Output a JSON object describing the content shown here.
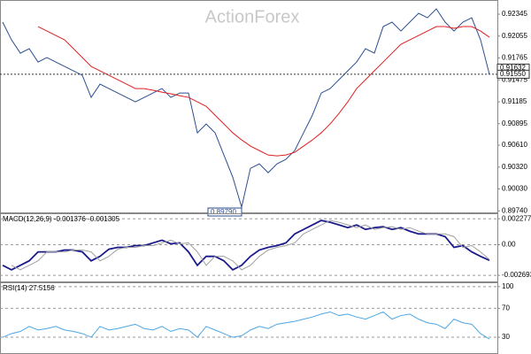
{
  "watermark": "ActionForex",
  "chart_data": [
    {
      "type": "line",
      "series": [
        {
          "color": "#2d4f8f",
          "values": [
            0.9224,
            0.92005,
            0.91829,
            0.91888,
            0.91712,
            0.91771,
            0.91712,
            0.91653,
            0.91595,
            0.91536,
            0.91243,
            0.91419,
            0.9136,
            0.91301,
            0.91243,
            0.91184,
            0.91243,
            0.91301,
            0.9136,
            0.91243,
            0.91301,
            0.91301,
            0.90774,
            0.90891,
            0.90774,
            0.9048,
            0.90187,
            0.8979,
            0.90304,
            0.90363,
            0.90246,
            0.90363,
            0.90422,
            0.90539,
            0.90774,
            0.91008,
            0.91301,
            0.9136,
            0.91477,
            0.91595,
            0.91712,
            0.91888,
            0.91829,
            0.92181,
            0.9224,
            0.92122,
            0.9224,
            0.92357,
            0.92298,
            0.92416,
            0.9224,
            0.92122,
            0.9224,
            0.92298,
            0.92005,
            0.9155
          ]
        },
        {
          "color": "#e02020",
          "values": [
            null,
            null,
            null,
            null,
            0.92181,
            0.92122,
            0.92064,
            0.92005,
            0.91888,
            0.91771,
            0.91653,
            0.91595,
            0.91536,
            0.91477,
            0.91419,
            0.9136,
            0.9136,
            0.91337,
            0.91313,
            0.9129,
            0.91266,
            0.91243,
            0.91184,
            0.91125,
            0.91008,
            0.90891,
            0.90774,
            0.9068,
            0.90598,
            0.90539,
            0.9048,
            0.90469,
            0.9048,
            0.90515,
            0.90598,
            0.9068,
            0.90774,
            0.90891,
            0.91031,
            0.91184,
            0.9136,
            0.91477,
            0.91595,
            0.91712,
            0.91829,
            0.91947,
            0.92005,
            0.92064,
            0.92122,
            0.92181,
            0.92181,
            0.92158,
            0.92181,
            0.92181,
            0.92122,
            0.9204
          ]
        }
      ],
      "ylim": [
        0.8972,
        0.92533
      ],
      "yticks": [
        0.92345,
        0.92055,
        0.91765,
        0.91475,
        0.91185,
        0.90895,
        {
          "value": 0.9061,
          "label": "0.90610"
        },
        {
          "value": 0.9032,
          "label": "0.90320"
        },
        {
          "value": 0.9003,
          "label": "0.90030"
        },
        {
          "value": 0.8974,
          "label": "0.89740"
        }
      ],
      "price_labels": [
        {
          "value": 0.91632,
          "label": "0.91632"
        },
        {
          "value": 0.9155,
          "label": "0.91550"
        }
      ],
      "low_label": {
        "value": 0.8979,
        "label": "0.89790"
      }
    },
    {
      "type": "line",
      "title": "MACD(12,26,9) -0.001376 -0.001305",
      "series": [
        {
          "color": "#1a1a8c",
          "values": [
            -0.001815,
            -0.002209,
            -0.001815,
            -0.00142,
            -0.000631,
            -0.000631,
            -0.000631,
            -0.000473,
            -0.000473,
            -0.000631,
            -0.00142,
            -0.001026,
            -0.000395,
            -0.000237,
            -0.000237,
            -7.9e-05,
            -7.9e-05,
            0.000158,
            0.000395,
            7.9e-05,
            0.000158,
            -0.000631,
            -0.001815,
            -0.001026,
            -0.001026,
            -0.00142,
            -0.002209,
            -0.001815,
            -0.001026,
            -0.000473,
            -0.000237,
            -7.9e-05,
            0.000158,
            0.000947,
            0.001341,
            0.001736,
            0.00213,
            0.001973,
            0.001736,
            0.001499,
            0.001736,
            0.001341,
            0.001499,
            0.001578,
            0.001341,
            0.001499,
            0.001184,
            0.000947,
            0.000947,
            0.000947,
            0.00071,
            -0.000237,
            -7.9e-05,
            -0.000631,
            -0.001026,
            -0.001376
          ]
        },
        {
          "color": "#a0a0a0",
          "values": [
            null,
            -0.001815,
            -0.002209,
            -0.001815,
            -0.00142,
            -0.000631,
            -0.000631,
            -0.000631,
            -0.000473,
            -0.000473,
            -0.000631,
            -0.00142,
            -0.001026,
            -0.000395,
            -0.000237,
            -0.000237,
            -7.9e-05,
            -7.9e-05,
            0.000158,
            0.000395,
            7.9e-05,
            0.000158,
            -0.000631,
            -0.001815,
            -0.001026,
            -0.001026,
            -0.00142,
            -0.002209,
            -0.001815,
            -0.001026,
            -0.000473,
            -0.000237,
            -7.9e-05,
            0.000158,
            0.000947,
            0.001341,
            0.001736,
            0.00213,
            0.001973,
            0.001736,
            0.001499,
            0.001736,
            0.001341,
            0.001499,
            0.001578,
            0.001341,
            0.001499,
            0.001184,
            0.000947,
            0.000947,
            0.000947,
            0.00071,
            -0.000237,
            -7.9e-05,
            -0.000631,
            -0.001305
          ]
        }
      ],
      "ylim": [
        -0.00323,
        0.00276
      ],
      "yticks": [
        0.002277,
        {
          "value": 0,
          "label": "0.00"
        },
        -0.002693
      ]
    },
    {
      "type": "line",
      "title": "RSI(14) 27.5156",
      "series": [
        {
          "color": "#4da6e6",
          "values": [
            30,
            35,
            38,
            45,
            40,
            42,
            45,
            40,
            38,
            35,
            30,
            45,
            40,
            42,
            45,
            48,
            42,
            40,
            45,
            38,
            42,
            40,
            30,
            45,
            40,
            35,
            30,
            32,
            40,
            45,
            42,
            48,
            50,
            52,
            55,
            58,
            62,
            65,
            60,
            62,
            58,
            55,
            60,
            65,
            55,
            60,
            62,
            55,
            50,
            48,
            42,
            55,
            50,
            48,
            35,
            27.5156
          ]
        }
      ],
      "ylim": [
        8,
        106
      ],
      "yticks": [
        100,
        70,
        30
      ]
    }
  ]
}
